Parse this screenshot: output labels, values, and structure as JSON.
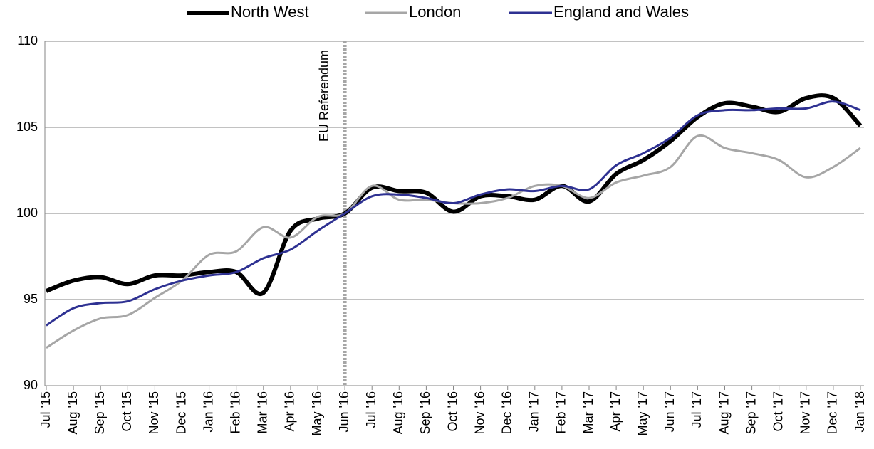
{
  "chart_data": {
    "type": "line",
    "categories": [
      "Jul '15",
      "Aug '15",
      "Sep '15",
      "Oct '15",
      "Nov '15",
      "Dec '15",
      "Jan '16",
      "Feb '16",
      "Mar '16",
      "Apr '16",
      "May '16",
      "Jun '16",
      "Jul '16",
      "Aug '16",
      "Sep '16",
      "Oct '16",
      "Nov '16",
      "Dec '16",
      "Jan '17",
      "Feb '17",
      "Mar '17",
      "Apr '17",
      "May '17",
      "Jun '17",
      "Jul '17",
      "Aug '17",
      "Sep '17",
      "Oct '17",
      "Nov '17",
      "Dec '17",
      "Jan '18"
    ],
    "series": [
      {
        "name": "North West",
        "color": "#000000",
        "width": 6,
        "values": [
          95.5,
          96.1,
          96.3,
          95.9,
          96.4,
          96.4,
          96.6,
          96.6,
          95.4,
          99.0,
          99.7,
          100.0,
          101.5,
          101.3,
          101.2,
          100.1,
          101.0,
          101.0,
          100.8,
          101.6,
          100.7,
          102.3,
          103.1,
          104.2,
          105.6,
          106.4,
          106.2,
          105.9,
          106.7,
          106.7,
          105.1
        ]
      },
      {
        "name": "London",
        "color": "#a6a6a6",
        "width": 3,
        "values": [
          92.2,
          93.2,
          93.9,
          94.1,
          95.1,
          96.1,
          97.6,
          97.8,
          99.2,
          98.6,
          99.8,
          100.0,
          101.6,
          100.8,
          100.8,
          100.6,
          100.6,
          100.9,
          101.6,
          101.6,
          100.9,
          101.8,
          102.2,
          102.7,
          104.5,
          103.8,
          103.5,
          103.1,
          102.1,
          102.7,
          103.8
        ]
      },
      {
        "name": "England and Wales",
        "color": "#2e3192",
        "width": 3,
        "values": [
          93.5,
          94.5,
          94.8,
          94.9,
          95.6,
          96.1,
          96.4,
          96.6,
          97.4,
          97.9,
          99.0,
          100.0,
          101.0,
          101.1,
          100.9,
          100.6,
          101.1,
          101.4,
          101.3,
          101.6,
          101.4,
          102.8,
          103.5,
          104.4,
          105.7,
          106.0,
          106.0,
          106.1,
          106.1,
          106.5,
          106.0
        ]
      }
    ],
    "ylim": [
      90,
      110
    ],
    "yticks": [
      90,
      95,
      100,
      105,
      110
    ],
    "grid": true,
    "annotation": {
      "text": "EU Referendum",
      "at": "Jun '16"
    },
    "legend": "top"
  }
}
